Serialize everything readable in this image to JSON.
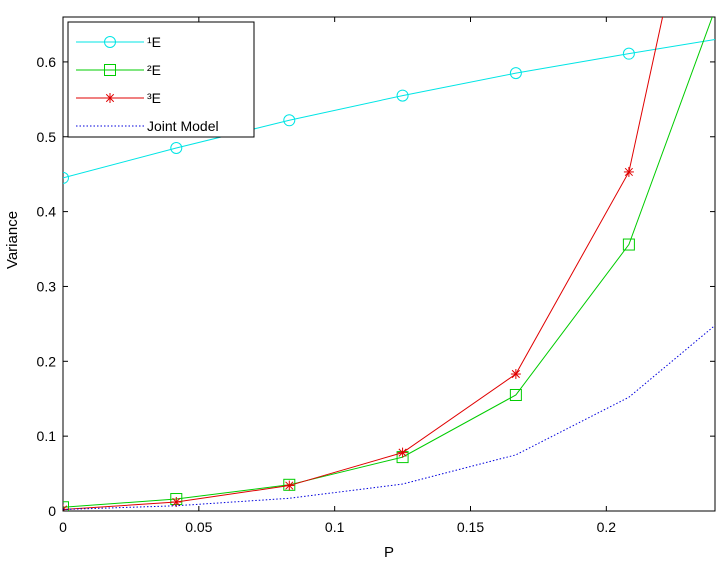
{
  "chart_data": {
    "type": "line",
    "xlabel": "P",
    "ylabel": "Variance",
    "xlim": [
      0,
      0.24
    ],
    "ylim": [
      0,
      0.66
    ],
    "xticks": [
      0,
      0.05,
      0.1,
      0.15,
      0.2
    ],
    "xtick_labels": [
      "0",
      "0.05",
      "0.1",
      "0.15",
      "0.2"
    ],
    "yticks": [
      0,
      0.1,
      0.2,
      0.3,
      0.4,
      0.5,
      0.6
    ],
    "ytick_labels": [
      "0",
      "0.1",
      "0.2",
      "0.3",
      "0.4",
      "0.5",
      "0.6"
    ],
    "grid": false,
    "legend_position": "top-left",
    "series": [
      {
        "name": "¹E",
        "color": "#00e5e5",
        "marker": "circle",
        "line_style": "solid",
        "x": [
          0,
          0.0417,
          0.0833,
          0.125,
          0.1667,
          0.2083,
          0.24
        ],
        "y": [
          0.445,
          0.485,
          0.522,
          0.555,
          0.585,
          0.611,
          0.63
        ],
        "marked": [
          true,
          true,
          true,
          true,
          true,
          true,
          false
        ]
      },
      {
        "name": "²E",
        "color": "#00cc00",
        "marker": "square",
        "line_style": "solid",
        "x": [
          0,
          0.0417,
          0.0833,
          0.125,
          0.1667,
          0.2083,
          0.24
        ],
        "y": [
          0.005,
          0.016,
          0.035,
          0.072,
          0.155,
          0.356,
          0.67
        ],
        "marked": [
          true,
          true,
          true,
          true,
          true,
          true,
          false
        ]
      },
      {
        "name": "³E",
        "color": "#e00000",
        "marker": "star",
        "line_style": "solid",
        "x": [
          0,
          0.0417,
          0.0833,
          0.125,
          0.1667,
          0.2083,
          0.2213
        ],
        "y": [
          0.002,
          0.012,
          0.034,
          0.078,
          0.183,
          0.453,
          0.67
        ],
        "marked": [
          true,
          true,
          true,
          true,
          true,
          true,
          false
        ]
      },
      {
        "name": "Joint Model",
        "color": "#0000dd",
        "marker": "none",
        "line_style": "dotted",
        "x": [
          0,
          0.0417,
          0.0833,
          0.125,
          0.1667,
          0.2083,
          0.24
        ],
        "y": [
          0.002,
          0.007,
          0.017,
          0.036,
          0.075,
          0.152,
          0.248
        ],
        "marked": [
          false,
          false,
          false,
          false,
          false,
          false,
          false
        ]
      }
    ]
  }
}
